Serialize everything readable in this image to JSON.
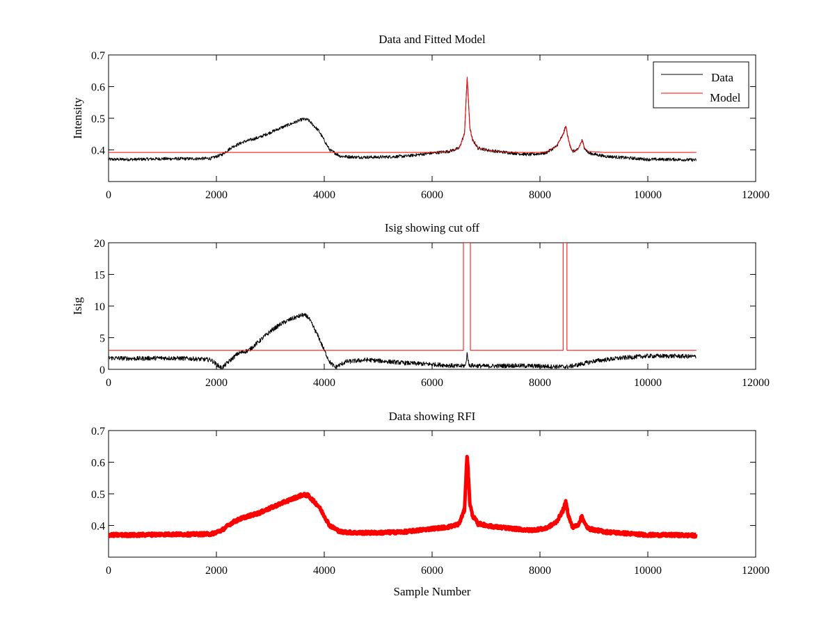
{
  "chart_data": [
    {
      "type": "line",
      "title": "Data and Fitted Model",
      "xlabel": "",
      "ylabel": "Intensity",
      "xlim": [
        0,
        12000
      ],
      "ylim": [
        0.3,
        0.7
      ],
      "xticks": [
        0,
        2000,
        4000,
        6000,
        8000,
        10000,
        12000
      ],
      "yticks": [
        0.4,
        0.5,
        0.6,
        0.7
      ],
      "xtick_labels": [
        "0",
        "2000",
        "4000",
        "6000",
        "8000",
        "10000",
        "12000"
      ],
      "ytick_labels": [
        "0.4",
        "0.5",
        "0.6",
        "0.7"
      ],
      "grid": false,
      "legend_position": "top-right",
      "series": [
        {
          "name": "Data",
          "color": "#000000",
          "x": [
            0,
            500,
            1000,
            1500,
            1900,
            2100,
            2300,
            2500,
            2800,
            3200,
            3600,
            3700,
            3900,
            4100,
            4300,
            4600,
            5000,
            5500,
            6000,
            6300,
            6500,
            6600,
            6650,
            6700,
            6750,
            6800,
            6850,
            6900,
            7000,
            7200,
            7500,
            7800,
            8100,
            8300,
            8420,
            8480,
            8530,
            8600,
            8700,
            8780,
            8830,
            8900,
            9200,
            9600,
            10000,
            10500,
            10900
          ],
          "values": [
            0.37,
            0.37,
            0.372,
            0.372,
            0.373,
            0.385,
            0.41,
            0.425,
            0.44,
            0.47,
            0.497,
            0.495,
            0.46,
            0.4,
            0.38,
            0.377,
            0.377,
            0.38,
            0.39,
            0.395,
            0.405,
            0.45,
            0.63,
            0.47,
            0.43,
            0.42,
            0.405,
            0.405,
            0.4,
            0.395,
            0.39,
            0.385,
            0.39,
            0.41,
            0.445,
            0.475,
            0.43,
            0.395,
            0.4,
            0.43,
            0.405,
            0.39,
            0.38,
            0.375,
            0.37,
            0.37,
            0.368
          ],
          "noise": 0.005
        },
        {
          "name": "Model",
          "color": "#ff0000",
          "x": [
            0,
            4000,
            6000,
            6300,
            6500,
            6600,
            6650,
            6700,
            6750,
            6800,
            6850,
            6900,
            7000,
            7200,
            7500,
            7800,
            8100,
            8300,
            8420,
            8480,
            8530,
            8600,
            8700,
            8780,
            8830,
            8900,
            9200,
            9600,
            10900
          ],
          "values": [
            0.392,
            0.392,
            0.392,
            0.395,
            0.405,
            0.45,
            0.63,
            0.47,
            0.43,
            0.42,
            0.405,
            0.405,
            0.4,
            0.395,
            0.392,
            0.392,
            0.392,
            0.41,
            0.445,
            0.475,
            0.43,
            0.395,
            0.4,
            0.43,
            0.405,
            0.395,
            0.392,
            0.392,
            0.392
          ],
          "noise": 0
        }
      ]
    },
    {
      "type": "line",
      "title": "Isig showing cut off",
      "xlabel": "",
      "ylabel": "Isig",
      "xlim": [
        0,
        12000
      ],
      "ylim": [
        0,
        20
      ],
      "xticks": [
        0,
        2000,
        4000,
        6000,
        8000,
        10000,
        12000
      ],
      "yticks": [
        0,
        5,
        10,
        15,
        20
      ],
      "xtick_labels": [
        "0",
        "2000",
        "4000",
        "6000",
        "8000",
        "10000",
        "12000"
      ],
      "ytick_labels": [
        "0",
        "5",
        "10",
        "15",
        "20"
      ],
      "grid": false,
      "series": [
        {
          "color": "#000000",
          "x": [
            0,
            500,
            1000,
            1500,
            1900,
            2000,
            2100,
            2200,
            2400,
            2600,
            2800,
            3000,
            3200,
            3400,
            3600,
            3700,
            3900,
            4000,
            4100,
            4200,
            4400,
            4800,
            5500,
            6000,
            6500,
            6620,
            6650,
            6680,
            6750,
            7000,
            7500,
            8000,
            8500,
            8700,
            9000,
            9500,
            10000,
            10500,
            10900
          ],
          "values": [
            1.8,
            1.7,
            1.8,
            1.7,
            1.5,
            0.8,
            0.2,
            1.0,
            2.5,
            3.0,
            4.5,
            6.0,
            7.2,
            8.0,
            8.6,
            8.3,
            5.0,
            3.0,
            1.2,
            0.3,
            1.2,
            1.5,
            1.0,
            0.8,
            0.5,
            0.6,
            2.6,
            0.7,
            0.6,
            0.5,
            0.6,
            0.5,
            0.4,
            0.7,
            1.3,
            1.8,
            2.1,
            2.1,
            2.0
          ],
          "noise": 0.35
        },
        {
          "color": "#ff0000",
          "x": [
            0,
            6580,
            6580,
            6710,
            6710,
            8430,
            8430,
            8500,
            8500,
            10900
          ],
          "values": [
            3,
            3,
            20,
            20,
            3,
            3,
            20,
            20,
            3,
            3
          ],
          "noise": 0
        }
      ]
    },
    {
      "type": "line",
      "title": "Data showing RFI",
      "xlabel": "Sample Number",
      "ylabel": "",
      "xlim": [
        0,
        12000
      ],
      "ylim": [
        0.3,
        0.7
      ],
      "xticks": [
        0,
        2000,
        4000,
        6000,
        8000,
        10000,
        12000
      ],
      "yticks": [
        0.4,
        0.5,
        0.6,
        0.7
      ],
      "xtick_labels": [
        "0",
        "2000",
        "4000",
        "6000",
        "8000",
        "10000",
        "12000"
      ],
      "ytick_labels": [
        "0.4",
        "0.5",
        "0.6",
        "0.7"
      ],
      "grid": false,
      "series": [
        {
          "color": "#ff0000",
          "marker": true,
          "x": [
            0,
            500,
            1000,
            1500,
            1900,
            2100,
            2300,
            2500,
            2800,
            3200,
            3600,
            3700,
            3900,
            4100,
            4300,
            4600,
            5000,
            5500,
            6000,
            6300,
            6500,
            6600,
            6650,
            6700,
            6750,
            6800,
            6850,
            6900,
            7000,
            7200,
            7500,
            7800,
            8100,
            8300,
            8420,
            8480,
            8530,
            8600,
            8700,
            8780,
            8830,
            8900,
            9200,
            9600,
            10000,
            10500,
            10900
          ],
          "values": [
            0.37,
            0.37,
            0.372,
            0.372,
            0.373,
            0.385,
            0.41,
            0.425,
            0.44,
            0.47,
            0.497,
            0.495,
            0.46,
            0.4,
            0.38,
            0.377,
            0.377,
            0.38,
            0.39,
            0.395,
            0.405,
            0.45,
            0.63,
            0.47,
            0.43,
            0.42,
            0.405,
            0.405,
            0.4,
            0.395,
            0.39,
            0.385,
            0.39,
            0.41,
            0.445,
            0.475,
            0.43,
            0.395,
            0.4,
            0.43,
            0.405,
            0.39,
            0.38,
            0.375,
            0.37,
            0.37,
            0.368
          ],
          "noise": 0.005
        }
      ]
    }
  ]
}
